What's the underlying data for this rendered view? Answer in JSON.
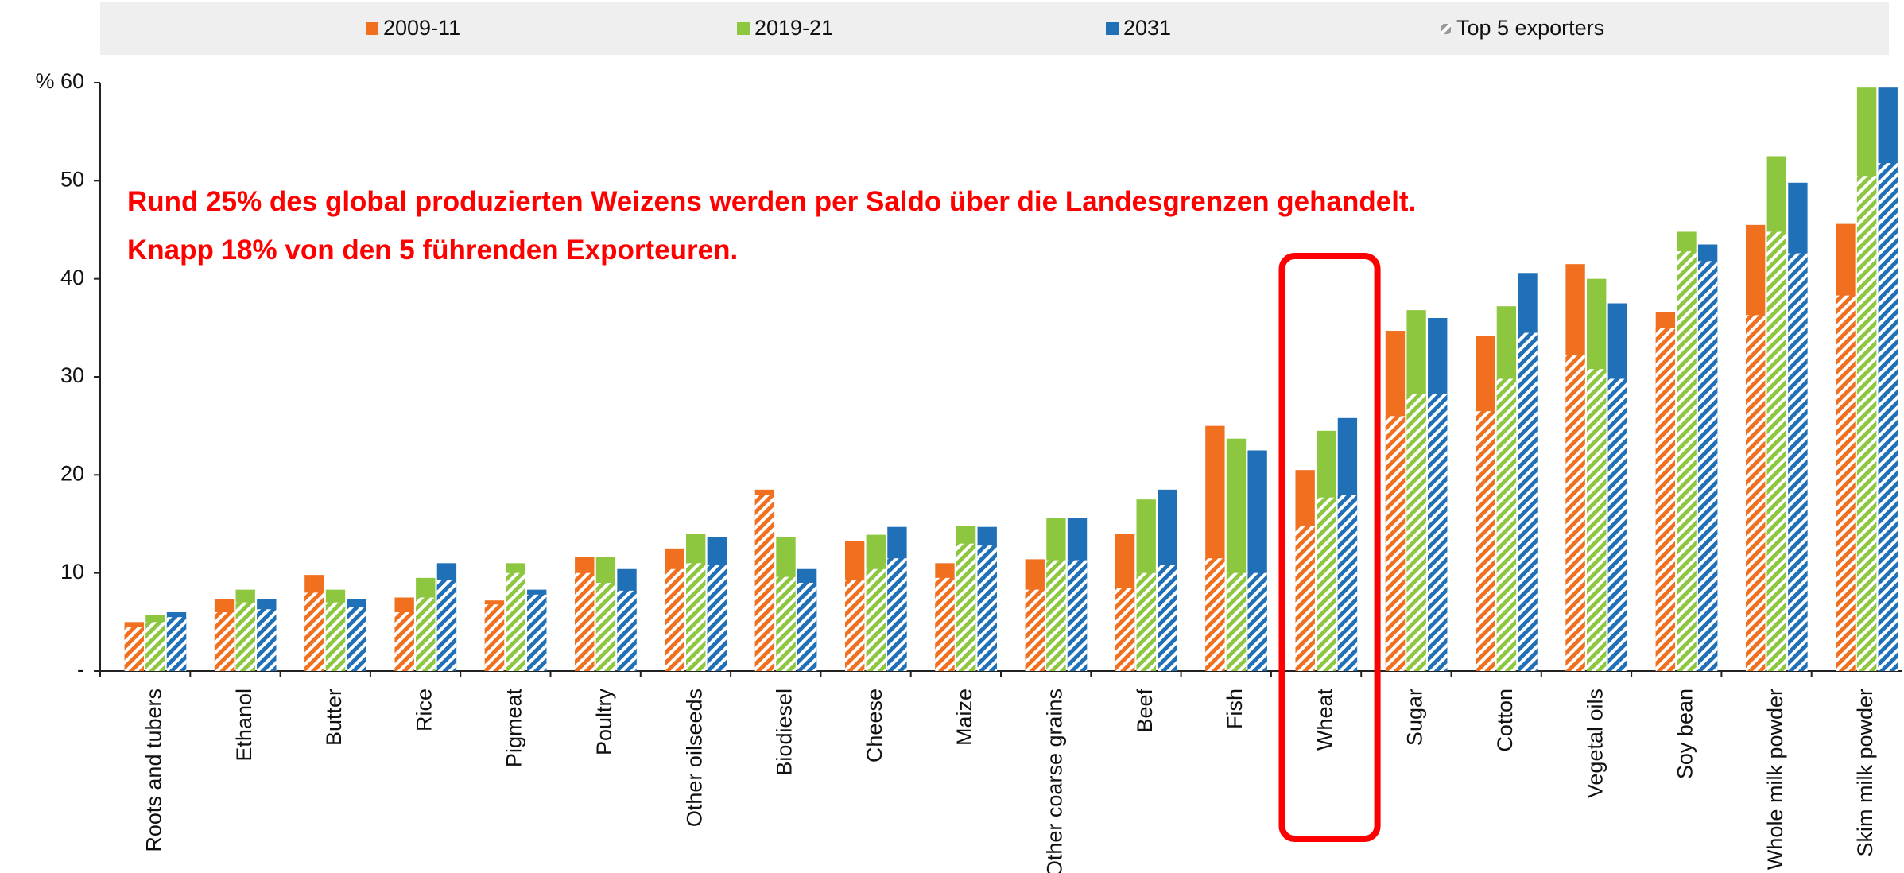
{
  "chart_data": {
    "type": "bar",
    "annotations": [
      "Rund 25% des global produzierten Weizens werden per Saldo über die Landesgrenzen gehandelt.",
      "Knapp 18% von den 5 führenden Exporteuren."
    ],
    "top5_legend": "Top  5 exporters",
    "categories": [
      "Roots and tubers",
      "Ethanol",
      "Butter",
      "Rice",
      "Pigmeat",
      "Poultry",
      "Other oilseeds",
      "Biodiesel",
      "Cheese",
      "Maize",
      "Other coarse grains",
      "Beef",
      "Fish",
      "Wheat",
      "Sugar",
      "Cotton",
      "Vegetal oils",
      "Soy bean",
      "Whole milk powder",
      "Skim milk powder"
    ],
    "series": [
      {
        "name": "2009-11",
        "color": "#f07020",
        "values": [
          5,
          7.3,
          9.8,
          7.5,
          7.2,
          11.6,
          12.5,
          18.5,
          13.3,
          11,
          11.4,
          14,
          25,
          20.5,
          34.7,
          34.2,
          41.5,
          36.6,
          45.5,
          45.6
        ],
        "top5": [
          4.5,
          6,
          8,
          6,
          6.8,
          10,
          10.4,
          18,
          9.3,
          9.5,
          8.3,
          8.5,
          11.5,
          14.8,
          26,
          26.5,
          32.2,
          35,
          36.3,
          38.3
        ]
      },
      {
        "name": "2019-21",
        "color": "#8dc63f",
        "values": [
          5.7,
          8.3,
          8.3,
          9.5,
          11,
          11.6,
          14,
          13.7,
          13.9,
          14.8,
          15.6,
          17.5,
          23.7,
          24.5,
          36.8,
          37.2,
          40,
          44.8,
          52.5,
          59.5
        ],
        "top5": [
          5,
          7,
          7,
          7.5,
          10,
          9,
          11,
          9.6,
          10.4,
          13,
          11.3,
          10,
          10,
          17.7,
          28.3,
          29.8,
          30.8,
          42.8,
          44.8,
          50.5
        ]
      },
      {
        "name": "2031",
        "color": "#2070b8",
        "values": [
          6,
          7.3,
          7.3,
          11,
          8.3,
          10.4,
          13.7,
          10.4,
          14.7,
          14.7,
          15.6,
          18.5,
          22.5,
          25.8,
          36,
          40.6,
          37.5,
          43.5,
          49.8,
          59.5
        ],
        "top5": [
          5.5,
          6.3,
          6.5,
          9.3,
          7.8,
          8.2,
          10.8,
          9,
          11.5,
          12.8,
          11.3,
          10.8,
          10,
          18,
          28.3,
          34.5,
          29.8,
          41.8,
          42.6,
          51.8
        ]
      }
    ],
    "ylim": [
      0,
      60
    ],
    "yticks": [
      {
        "value": 0,
        "label": "-"
      },
      10,
      20,
      30,
      40,
      50,
      {
        "value": 60,
        "label": "% 60"
      }
    ]
  }
}
